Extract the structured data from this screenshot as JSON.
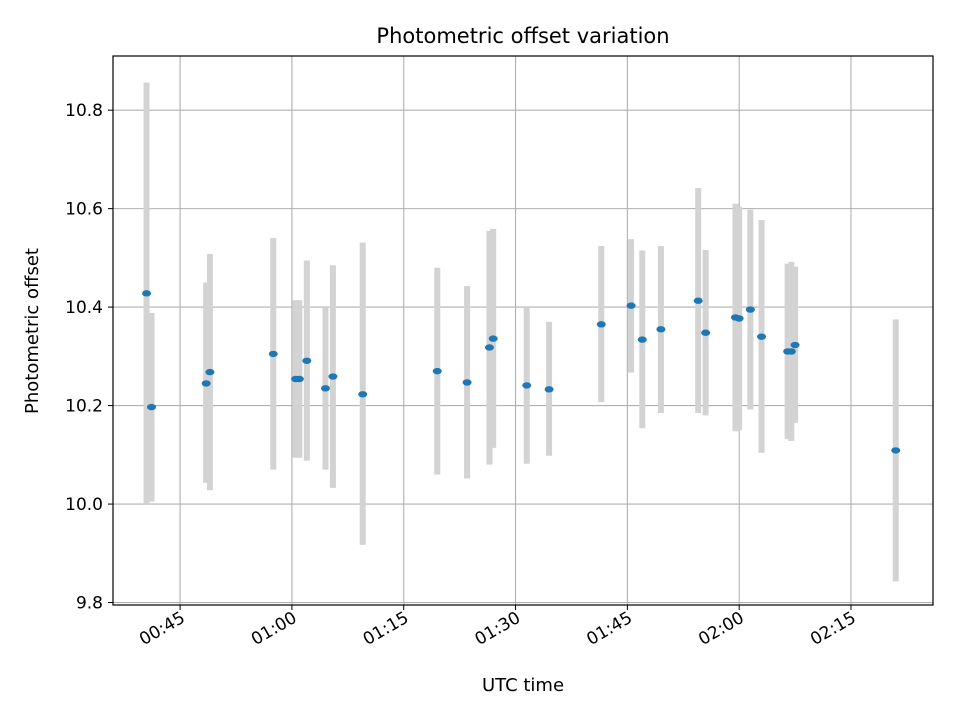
{
  "chart_data": {
    "type": "scatter",
    "title": "Photometric offset variation",
    "xlabel": "UTC time",
    "ylabel": "Photometric offset",
    "x_ticks": [
      "00:45",
      "01:00",
      "01:15",
      "01:30",
      "01:45",
      "02:00",
      "02:15"
    ],
    "y_ticks": [
      "9.8",
      "10.0",
      "10.2",
      "10.4",
      "10.6",
      "10.8"
    ],
    "xlim": [
      "00:36",
      "02:26"
    ],
    "ylim": [
      9.795,
      10.91
    ],
    "grid": true,
    "colors": {
      "point": "#1f77b4",
      "errorbar": "#d3d3d3",
      "grid": "#b0b0b0"
    },
    "points": [
      {
        "x": "00:40:30",
        "y": 10.428,
        "ylow": 10.0,
        "yhigh": 10.856
      },
      {
        "x": "00:41:10",
        "y": 10.197,
        "ylow": 10.005,
        "yhigh": 10.388
      },
      {
        "x": "00:48:30",
        "y": 10.245,
        "ylow": 10.043,
        "yhigh": 10.45
      },
      {
        "x": "00:49:00",
        "y": 10.268,
        "ylow": 10.028,
        "yhigh": 10.508
      },
      {
        "x": "00:57:30",
        "y": 10.305,
        "ylow": 10.07,
        "yhigh": 10.54
      },
      {
        "x": "01:00:30",
        "y": 10.254,
        "ylow": 10.094,
        "yhigh": 10.414
      },
      {
        "x": "01:01:00",
        "y": 10.254,
        "ylow": 10.094,
        "yhigh": 10.414
      },
      {
        "x": "01:02:00",
        "y": 10.291,
        "ylow": 10.088,
        "yhigh": 10.495
      },
      {
        "x": "01:04:30",
        "y": 10.235,
        "ylow": 10.07,
        "yhigh": 10.4
      },
      {
        "x": "01:05:30",
        "y": 10.259,
        "ylow": 10.033,
        "yhigh": 10.485
      },
      {
        "x": "01:09:30",
        "y": 10.223,
        "ylow": 9.917,
        "yhigh": 10.531
      },
      {
        "x": "01:19:30",
        "y": 10.27,
        "ylow": 10.06,
        "yhigh": 10.48
      },
      {
        "x": "01:23:30",
        "y": 10.247,
        "ylow": 10.052,
        "yhigh": 10.443
      },
      {
        "x": "01:26:30",
        "y": 10.318,
        "ylow": 10.08,
        "yhigh": 10.555
      },
      {
        "x": "01:27:00",
        "y": 10.336,
        "ylow": 10.114,
        "yhigh": 10.559
      },
      {
        "x": "01:31:30",
        "y": 10.241,
        "ylow": 10.082,
        "yhigh": 10.4
      },
      {
        "x": "01:34:30",
        "y": 10.233,
        "ylow": 10.098,
        "yhigh": 10.37
      },
      {
        "x": "01:41:30",
        "y": 10.365,
        "ylow": 10.207,
        "yhigh": 10.524
      },
      {
        "x": "01:45:30",
        "y": 10.403,
        "ylow": 10.267,
        "yhigh": 10.538
      },
      {
        "x": "01:47:00",
        "y": 10.334,
        "ylow": 10.154,
        "yhigh": 10.515
      },
      {
        "x": "01:49:30",
        "y": 10.355,
        "ylow": 10.185,
        "yhigh": 10.524
      },
      {
        "x": "01:54:30",
        "y": 10.413,
        "ylow": 10.185,
        "yhigh": 10.642
      },
      {
        "x": "01:55:30",
        "y": 10.348,
        "ylow": 10.18,
        "yhigh": 10.516
      },
      {
        "x": "01:59:30",
        "y": 10.379,
        "ylow": 10.148,
        "yhigh": 10.61
      },
      {
        "x": "02:00:00",
        "y": 10.377,
        "ylow": 10.15,
        "yhigh": 10.604
      },
      {
        "x": "02:01:30",
        "y": 10.395,
        "ylow": 10.192,
        "yhigh": 10.598
      },
      {
        "x": "02:03:00",
        "y": 10.34,
        "ylow": 10.104,
        "yhigh": 10.577
      },
      {
        "x": "02:06:30",
        "y": 10.31,
        "ylow": 10.132,
        "yhigh": 10.488
      },
      {
        "x": "02:07:00",
        "y": 10.31,
        "ylow": 10.128,
        "yhigh": 10.492
      },
      {
        "x": "02:07:30",
        "y": 10.323,
        "ylow": 10.165,
        "yhigh": 10.482
      },
      {
        "x": "02:21:00",
        "y": 10.109,
        "ylow": 9.843,
        "yhigh": 10.375
      }
    ]
  }
}
